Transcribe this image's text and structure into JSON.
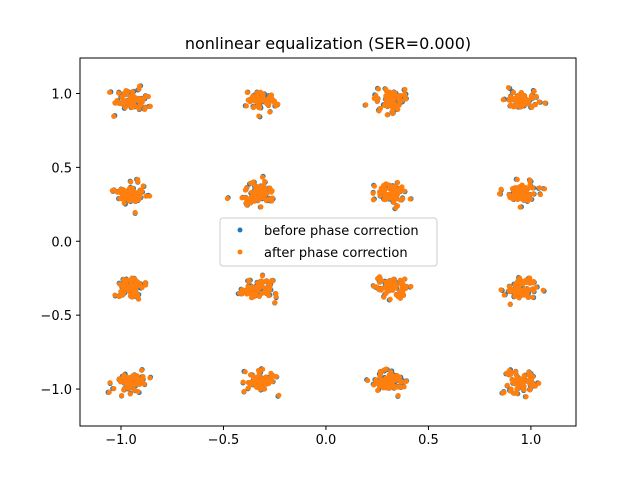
{
  "chart_data": {
    "type": "scatter",
    "title": "nonlinear equalization (SER=0.000)",
    "xlabel": "",
    "ylabel": "",
    "xlim": [
      -1.2,
      1.22
    ],
    "ylim": [
      -1.25,
      1.24
    ],
    "xticks": [
      -1.0,
      -0.5,
      0.0,
      0.5,
      1.0
    ],
    "xtick_labels": [
      "−1.0",
      "−0.5",
      "0.0",
      "0.5",
      "1.0"
    ],
    "yticks": [
      1.0,
      0.5,
      0.0,
      -0.5,
      -1.0
    ],
    "ytick_labels": [
      "1.0",
      "0.5",
      "0.0",
      "−0.5",
      "−1.0"
    ],
    "grid": false,
    "legend_position": "center",
    "constellation_levels": [
      -0.95,
      -0.32,
      0.32,
      0.95
    ],
    "spread": 0.04,
    "points_per_cluster": 60,
    "series": [
      {
        "name": "before phase correction",
        "color": "#1f77b4"
      },
      {
        "name": "after phase correction",
        "color": "#ff7f0e"
      }
    ]
  }
}
